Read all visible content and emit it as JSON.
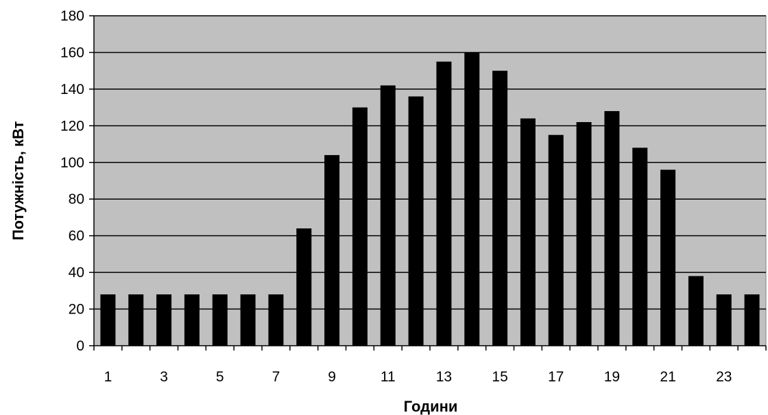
{
  "chart_data": {
    "type": "bar",
    "title": "",
    "xlabel": "Години",
    "ylabel": "Потужність, кВт",
    "categories": [
      1,
      2,
      3,
      4,
      5,
      6,
      7,
      8,
      9,
      10,
      11,
      12,
      13,
      14,
      15,
      16,
      17,
      18,
      19,
      20,
      21,
      22,
      23,
      24
    ],
    "x_tick_labels": [
      "1",
      "3",
      "5",
      "7",
      "9",
      "11",
      "13",
      "15",
      "17",
      "19",
      "21",
      "23"
    ],
    "y_ticks": [
      0,
      20,
      40,
      60,
      80,
      100,
      120,
      140,
      160,
      180
    ],
    "values": [
      28,
      28,
      28,
      28,
      28,
      28,
      28,
      64,
      104,
      130,
      142,
      136,
      155,
      160,
      150,
      124,
      115,
      122,
      128,
      108,
      96,
      38,
      28,
      28
    ],
    "ylim": [
      0,
      180
    ],
    "grid": true,
    "legend": "none",
    "colors": {
      "plot_bg": "#c0c0c0",
      "bar": "#000000",
      "grid": "#000000"
    }
  }
}
